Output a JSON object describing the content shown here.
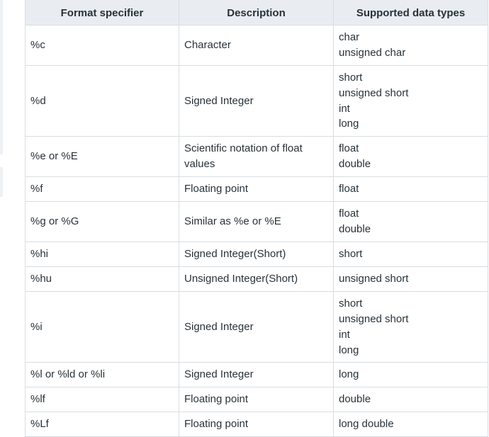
{
  "table": {
    "headers": [
      "Format specifier",
      "Description",
      "Supported data types"
    ],
    "rows": [
      {
        "specifier": "%c",
        "description": "Character",
        "types": [
          "char",
          "unsigned char"
        ]
      },
      {
        "specifier": "%d",
        "description": "Signed Integer",
        "types": [
          "short",
          "unsigned short",
          "int",
          "long"
        ]
      },
      {
        "specifier": "%e or %E",
        "description": "Scientific notation of float values",
        "types": [
          "float",
          "double"
        ]
      },
      {
        "specifier": "%f",
        "description": "Floating point",
        "types": [
          "float"
        ]
      },
      {
        "specifier": "%g or %G",
        "description": "Similar as %e or %E",
        "types": [
          "float",
          "double"
        ]
      },
      {
        "specifier": "%hi",
        "description": "Signed Integer(Short)",
        "types": [
          "short"
        ]
      },
      {
        "specifier": "%hu",
        "description": "Unsigned Integer(Short)",
        "types": [
          "unsigned short"
        ]
      },
      {
        "specifier": "%i",
        "description": "Signed Integer",
        "types": [
          "short",
          "unsigned short",
          "int",
          "long"
        ]
      },
      {
        "specifier": "%l or %ld or %li",
        "description": "Signed Integer",
        "types": [
          "long"
        ]
      },
      {
        "specifier": "%lf",
        "description": "Floating point",
        "types": [
          "double"
        ]
      },
      {
        "specifier": "%Lf",
        "description": "Floating point",
        "types": [
          "long double"
        ]
      }
    ]
  }
}
